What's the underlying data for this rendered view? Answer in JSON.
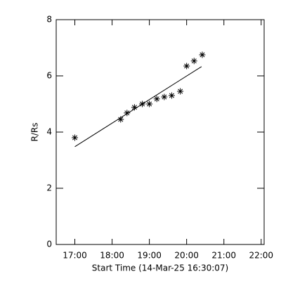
{
  "chart_data": {
    "type": "scatter",
    "x_label": "Start Time (14-Mar-25 16:30:07)",
    "y_label": "R/Rs",
    "x": [
      17.0,
      18.23,
      18.4,
      18.6,
      18.81,
      19.0,
      19.2,
      19.4,
      19.6,
      19.83,
      20.0,
      20.2,
      20.42
    ],
    "values": [
      3.8,
      4.45,
      4.68,
      4.88,
      5.0,
      5.0,
      5.18,
      5.25,
      5.3,
      5.45,
      6.35,
      6.53,
      6.75
    ],
    "color": "#000000",
    "fit": {
      "x": [
        17.0,
        20.4
      ],
      "values": [
        3.48,
        6.33
      ],
      "color": "#000000"
    },
    "xlim": [
      16.5,
      22.08
    ],
    "ylim": [
      0,
      8
    ],
    "xticks": [
      {
        "value": 17,
        "label": "17:00"
      },
      {
        "value": 18,
        "label": "18:00"
      },
      {
        "value": 19,
        "label": "19:00"
      },
      {
        "value": 20,
        "label": "20:00"
      },
      {
        "value": 21,
        "label": "21:00"
      },
      {
        "value": 22,
        "label": "22:00"
      }
    ],
    "yticks": [
      0,
      2,
      4,
      6,
      8
    ]
  }
}
